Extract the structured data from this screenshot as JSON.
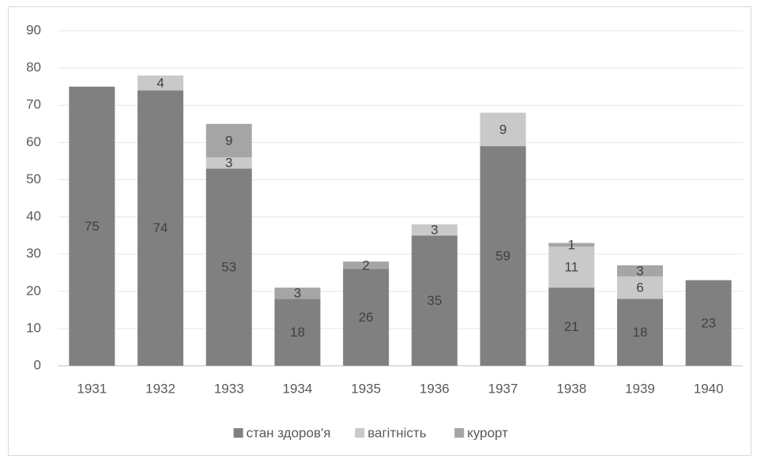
{
  "chart_data": {
    "type": "stacked_bar",
    "categories": [
      "1931",
      "1932",
      "1933",
      "1934",
      "1935",
      "1936",
      "1937",
      "1938",
      "1939",
      "1940"
    ],
    "series": [
      {
        "name": "стан здоров'я",
        "color": "#808080",
        "values": [
          75,
          74,
          53,
          18,
          26,
          35,
          59,
          21,
          18,
          23
        ]
      },
      {
        "name": "вагітність",
        "color": "#c9c9c9",
        "values": [
          null,
          4,
          3,
          null,
          null,
          3,
          9,
          11,
          6,
          null
        ]
      },
      {
        "name": "курорт",
        "color": "#a5a5a5",
        "values": [
          null,
          null,
          9,
          3,
          2,
          null,
          null,
          1,
          3,
          null
        ]
      }
    ],
    "ylim": [
      0,
      90
    ],
    "yticks": [
      0,
      10,
      20,
      30,
      40,
      50,
      60,
      70,
      80,
      90
    ],
    "grid": true,
    "legend": "bottom"
  }
}
